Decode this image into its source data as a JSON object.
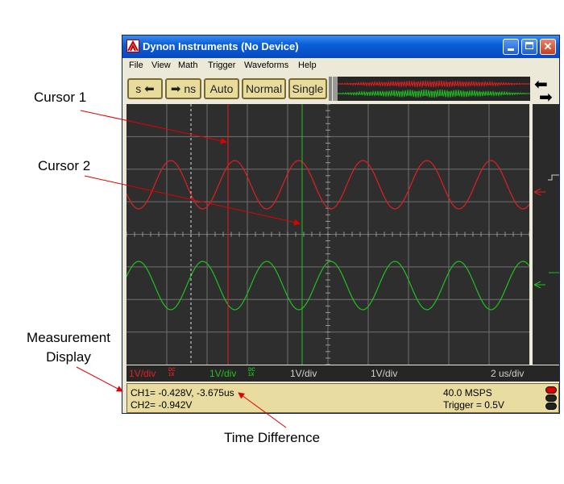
{
  "annotations": {
    "cursor1": "Cursor 1",
    "cursor2": "Cursor 2",
    "measurement_line1": "Measurement",
    "measurement_line2": "Display",
    "time_difference": "Time Difference"
  },
  "window": {
    "title": "Dynon Instruments (No Device)",
    "minimize_icon": "minimize-icon",
    "maximize_icon": "maximize-icon",
    "close_icon": "close-icon"
  },
  "menu": [
    "File",
    "View",
    "Math",
    "Trigger",
    "Waveforms",
    "Help"
  ],
  "toolbar": {
    "timebase_left": "s",
    "timebase_right": "ns",
    "auto": "Auto",
    "normal": "Normal",
    "single": "Single"
  },
  "status": {
    "ch1_scale": "1V/div",
    "ch1_coupling": "DC",
    "ch1_probe": "1X",
    "ch2_scale": "1V/div",
    "ch2_coupling": "DC",
    "ch2_probe": "1X",
    "math1_scale": "1V/div",
    "math2_scale": "1V/div",
    "time_scale": "2 us/div"
  },
  "measurement": {
    "ch1": "CH1= -0.428V, -3.675us",
    "ch2": "CH2= -0.942V",
    "sample_rate": "40.0 MSPS",
    "trigger": "Trigger = 0.5V"
  },
  "colors": {
    "ch1": "#e02020",
    "ch2": "#20c020",
    "grid": "#707070",
    "background": "#2e2e2e"
  }
}
